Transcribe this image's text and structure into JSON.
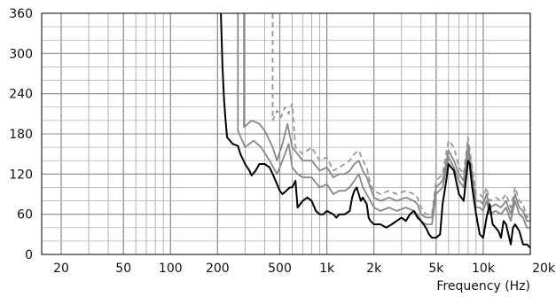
{
  "chart_data": {
    "type": "line",
    "title": "",
    "xlabel": "Frequency (Hz)",
    "ylabel": "",
    "x_scale": "log",
    "xlim": [
      15,
      20000
    ],
    "ylim": [
      0,
      360
    ],
    "grid": true,
    "x_ticks": [
      {
        "value": 20,
        "label": "20"
      },
      {
        "value": 50,
        "label": "50"
      },
      {
        "value": 100,
        "label": "100"
      },
      {
        "value": 200,
        "label": "200"
      },
      {
        "value": 500,
        "label": "500"
      },
      {
        "value": 1000,
        "label": "1k"
      },
      {
        "value": 2000,
        "label": "2k"
      },
      {
        "value": 5000,
        "label": "5k"
      },
      {
        "value": 10000,
        "label": "10k"
      },
      {
        "value": 20000,
        "label": "20k"
      }
    ],
    "y_ticks": [
      {
        "value": 0,
        "label": "0"
      },
      {
        "value": 60,
        "label": "60"
      },
      {
        "value": 120,
        "label": "120"
      },
      {
        "value": 180,
        "label": "180"
      },
      {
        "value": 240,
        "label": "240"
      },
      {
        "value": 300,
        "label": "300"
      },
      {
        "value": 360,
        "label": "360"
      }
    ],
    "series": [
      {
        "color": "#999999",
        "dashed": true,
        "points": [
          [
            450,
            360
          ],
          [
            450,
            200
          ],
          [
            480,
            215
          ],
          [
            510,
            205
          ],
          [
            540,
            220
          ],
          [
            570,
            210
          ],
          [
            600,
            225
          ],
          [
            630,
            160
          ],
          [
            700,
            150
          ],
          [
            800,
            160
          ],
          [
            900,
            140
          ],
          [
            1000,
            145
          ],
          [
            1100,
            125
          ],
          [
            1200,
            130
          ],
          [
            1300,
            135
          ],
          [
            1400,
            140
          ],
          [
            1500,
            150
          ],
          [
            1600,
            155
          ],
          [
            1700,
            140
          ],
          [
            1800,
            130
          ],
          [
            1900,
            105
          ],
          [
            2000,
            95
          ],
          [
            2200,
            90
          ],
          [
            2500,
            95
          ],
          [
            2800,
            90
          ],
          [
            3200,
            95
          ],
          [
            3600,
            90
          ],
          [
            3800,
            85
          ],
          [
            4000,
            70
          ],
          [
            4300,
            60
          ],
          [
            4700,
            60
          ],
          [
            5000,
            110
          ],
          [
            5500,
            120
          ],
          [
            6000,
            170
          ],
          [
            6500,
            160
          ],
          [
            7000,
            130
          ],
          [
            7500,
            120
          ],
          [
            8000,
            175
          ],
          [
            8500,
            130
          ],
          [
            9000,
            90
          ],
          [
            9500,
            90
          ],
          [
            10000,
            85
          ],
          [
            10500,
            100
          ],
          [
            11000,
            80
          ],
          [
            12000,
            85
          ],
          [
            13000,
            80
          ],
          [
            14000,
            90
          ],
          [
            15000,
            70
          ],
          [
            16000,
            100
          ],
          [
            17000,
            80
          ],
          [
            18000,
            75
          ],
          [
            19000,
            55
          ],
          [
            20000,
            60
          ]
        ]
      },
      {
        "color": "#888888",
        "dashed": false,
        "points": [
          [
            295,
            360
          ],
          [
            295,
            190
          ],
          [
            330,
            200
          ],
          [
            370,
            195
          ],
          [
            400,
            185
          ],
          [
            450,
            160
          ],
          [
            480,
            140
          ],
          [
            520,
            165
          ],
          [
            560,
            195
          ],
          [
            600,
            160
          ],
          [
            650,
            150
          ],
          [
            700,
            140
          ],
          [
            800,
            140
          ],
          [
            900,
            125
          ],
          [
            1000,
            130
          ],
          [
            1100,
            115
          ],
          [
            1200,
            120
          ],
          [
            1300,
            120
          ],
          [
            1400,
            125
          ],
          [
            1500,
            135
          ],
          [
            1600,
            140
          ],
          [
            1700,
            125
          ],
          [
            1800,
            115
          ],
          [
            1900,
            100
          ],
          [
            2000,
            85
          ],
          [
            2200,
            80
          ],
          [
            2500,
            85
          ],
          [
            2800,
            80
          ],
          [
            3200,
            85
          ],
          [
            3600,
            80
          ],
          [
            3800,
            75
          ],
          [
            4000,
            60
          ],
          [
            4300,
            55
          ],
          [
            4700,
            55
          ],
          [
            5000,
            100
          ],
          [
            5500,
            110
          ],
          [
            6000,
            155
          ],
          [
            6500,
            140
          ],
          [
            7000,
            120
          ],
          [
            7500,
            110
          ],
          [
            8000,
            165
          ],
          [
            8500,
            120
          ],
          [
            9000,
            80
          ],
          [
            9500,
            80
          ],
          [
            10000,
            75
          ],
          [
            10500,
            90
          ],
          [
            11000,
            70
          ],
          [
            12000,
            75
          ],
          [
            13000,
            70
          ],
          [
            14000,
            80
          ],
          [
            15000,
            60
          ],
          [
            16000,
            90
          ],
          [
            17000,
            70
          ],
          [
            18000,
            65
          ],
          [
            19000,
            50
          ],
          [
            20000,
            50
          ]
        ]
      },
      {
        "color": "#888888",
        "dashed": false,
        "points": [
          [
            270,
            360
          ],
          [
            270,
            185
          ],
          [
            300,
            160
          ],
          [
            340,
            170
          ],
          [
            380,
            160
          ],
          [
            430,
            140
          ],
          [
            480,
            120
          ],
          [
            520,
            140
          ],
          [
            570,
            165
          ],
          [
            600,
            130
          ],
          [
            650,
            120
          ],
          [
            700,
            115
          ],
          [
            800,
            115
          ],
          [
            900,
            100
          ],
          [
            1000,
            105
          ],
          [
            1100,
            90
          ],
          [
            1200,
            95
          ],
          [
            1300,
            95
          ],
          [
            1400,
            100
          ],
          [
            1500,
            110
          ],
          [
            1600,
            120
          ],
          [
            1700,
            100
          ],
          [
            1800,
            90
          ],
          [
            1900,
            80
          ],
          [
            2000,
            70
          ],
          [
            2200,
            65
          ],
          [
            2500,
            70
          ],
          [
            2800,
            65
          ],
          [
            3200,
            70
          ],
          [
            3600,
            65
          ],
          [
            3800,
            60
          ],
          [
            4000,
            50
          ],
          [
            4300,
            45
          ],
          [
            4700,
            45
          ],
          [
            5000,
            90
          ],
          [
            5500,
            100
          ],
          [
            6000,
            145
          ],
          [
            6500,
            130
          ],
          [
            7000,
            110
          ],
          [
            7500,
            100
          ],
          [
            8000,
            155
          ],
          [
            8500,
            110
          ],
          [
            9000,
            70
          ],
          [
            9500,
            70
          ],
          [
            10000,
            65
          ],
          [
            10500,
            80
          ],
          [
            11000,
            60
          ],
          [
            12000,
            65
          ],
          [
            13000,
            60
          ],
          [
            14000,
            70
          ],
          [
            15000,
            50
          ],
          [
            16000,
            80
          ],
          [
            17000,
            60
          ],
          [
            18000,
            55
          ],
          [
            19000,
            40
          ],
          [
            20000,
            40
          ]
        ]
      },
      {
        "color": "#000000",
        "dashed": false,
        "points": [
          [
            210,
            360
          ],
          [
            215,
            280
          ],
          [
            220,
            230
          ],
          [
            225,
            200
          ],
          [
            230,
            175
          ],
          [
            240,
            170
          ],
          [
            250,
            165
          ],
          [
            270,
            162
          ],
          [
            280,
            150
          ],
          [
            300,
            135
          ],
          [
            320,
            125
          ],
          [
            330,
            118
          ],
          [
            350,
            125
          ],
          [
            370,
            135
          ],
          [
            400,
            135
          ],
          [
            430,
            130
          ],
          [
            450,
            120
          ],
          [
            480,
            105
          ],
          [
            500,
            95
          ],
          [
            520,
            90
          ],
          [
            550,
            95
          ],
          [
            580,
            100
          ],
          [
            600,
            100
          ],
          [
            630,
            110
          ],
          [
            650,
            70
          ],
          [
            700,
            80
          ],
          [
            750,
            85
          ],
          [
            800,
            80
          ],
          [
            850,
            65
          ],
          [
            900,
            60
          ],
          [
            950,
            60
          ],
          [
            1000,
            65
          ],
          [
            1100,
            60
          ],
          [
            1150,
            55
          ],
          [
            1200,
            60
          ],
          [
            1300,
            60
          ],
          [
            1400,
            65
          ],
          [
            1450,
            85
          ],
          [
            1500,
            95
          ],
          [
            1550,
            100
          ],
          [
            1600,
            90
          ],
          [
            1650,
            80
          ],
          [
            1700,
            85
          ],
          [
            1800,
            75
          ],
          [
            1850,
            55
          ],
          [
            1900,
            50
          ],
          [
            2000,
            45
          ],
          [
            2200,
            45
          ],
          [
            2400,
            40
          ],
          [
            2600,
            45
          ],
          [
            2800,
            50
          ],
          [
            3000,
            55
          ],
          [
            3200,
            50
          ],
          [
            3400,
            60
          ],
          [
            3600,
            65
          ],
          [
            3800,
            55
          ],
          [
            4000,
            50
          ],
          [
            4300,
            40
          ],
          [
            4500,
            30
          ],
          [
            4700,
            25
          ],
          [
            5000,
            25
          ],
          [
            5300,
            30
          ],
          [
            5500,
            75
          ],
          [
            5800,
            110
          ],
          [
            6000,
            135
          ],
          [
            6500,
            125
          ],
          [
            7000,
            90
          ],
          [
            7500,
            80
          ],
          [
            8000,
            140
          ],
          [
            8200,
            135
          ],
          [
            8500,
            100
          ],
          [
            9000,
            60
          ],
          [
            9500,
            30
          ],
          [
            10000,
            25
          ],
          [
            10500,
            55
          ],
          [
            11000,
            75
          ],
          [
            11500,
            45
          ],
          [
            12000,
            40
          ],
          [
            12500,
            35
          ],
          [
            13000,
            25
          ],
          [
            13500,
            50
          ],
          [
            14000,
            45
          ],
          [
            15000,
            15
          ],
          [
            15500,
            40
          ],
          [
            16000,
            45
          ],
          [
            17000,
            35
          ],
          [
            18000,
            15
          ],
          [
            19000,
            15
          ],
          [
            20000,
            10
          ]
        ]
      }
    ]
  }
}
